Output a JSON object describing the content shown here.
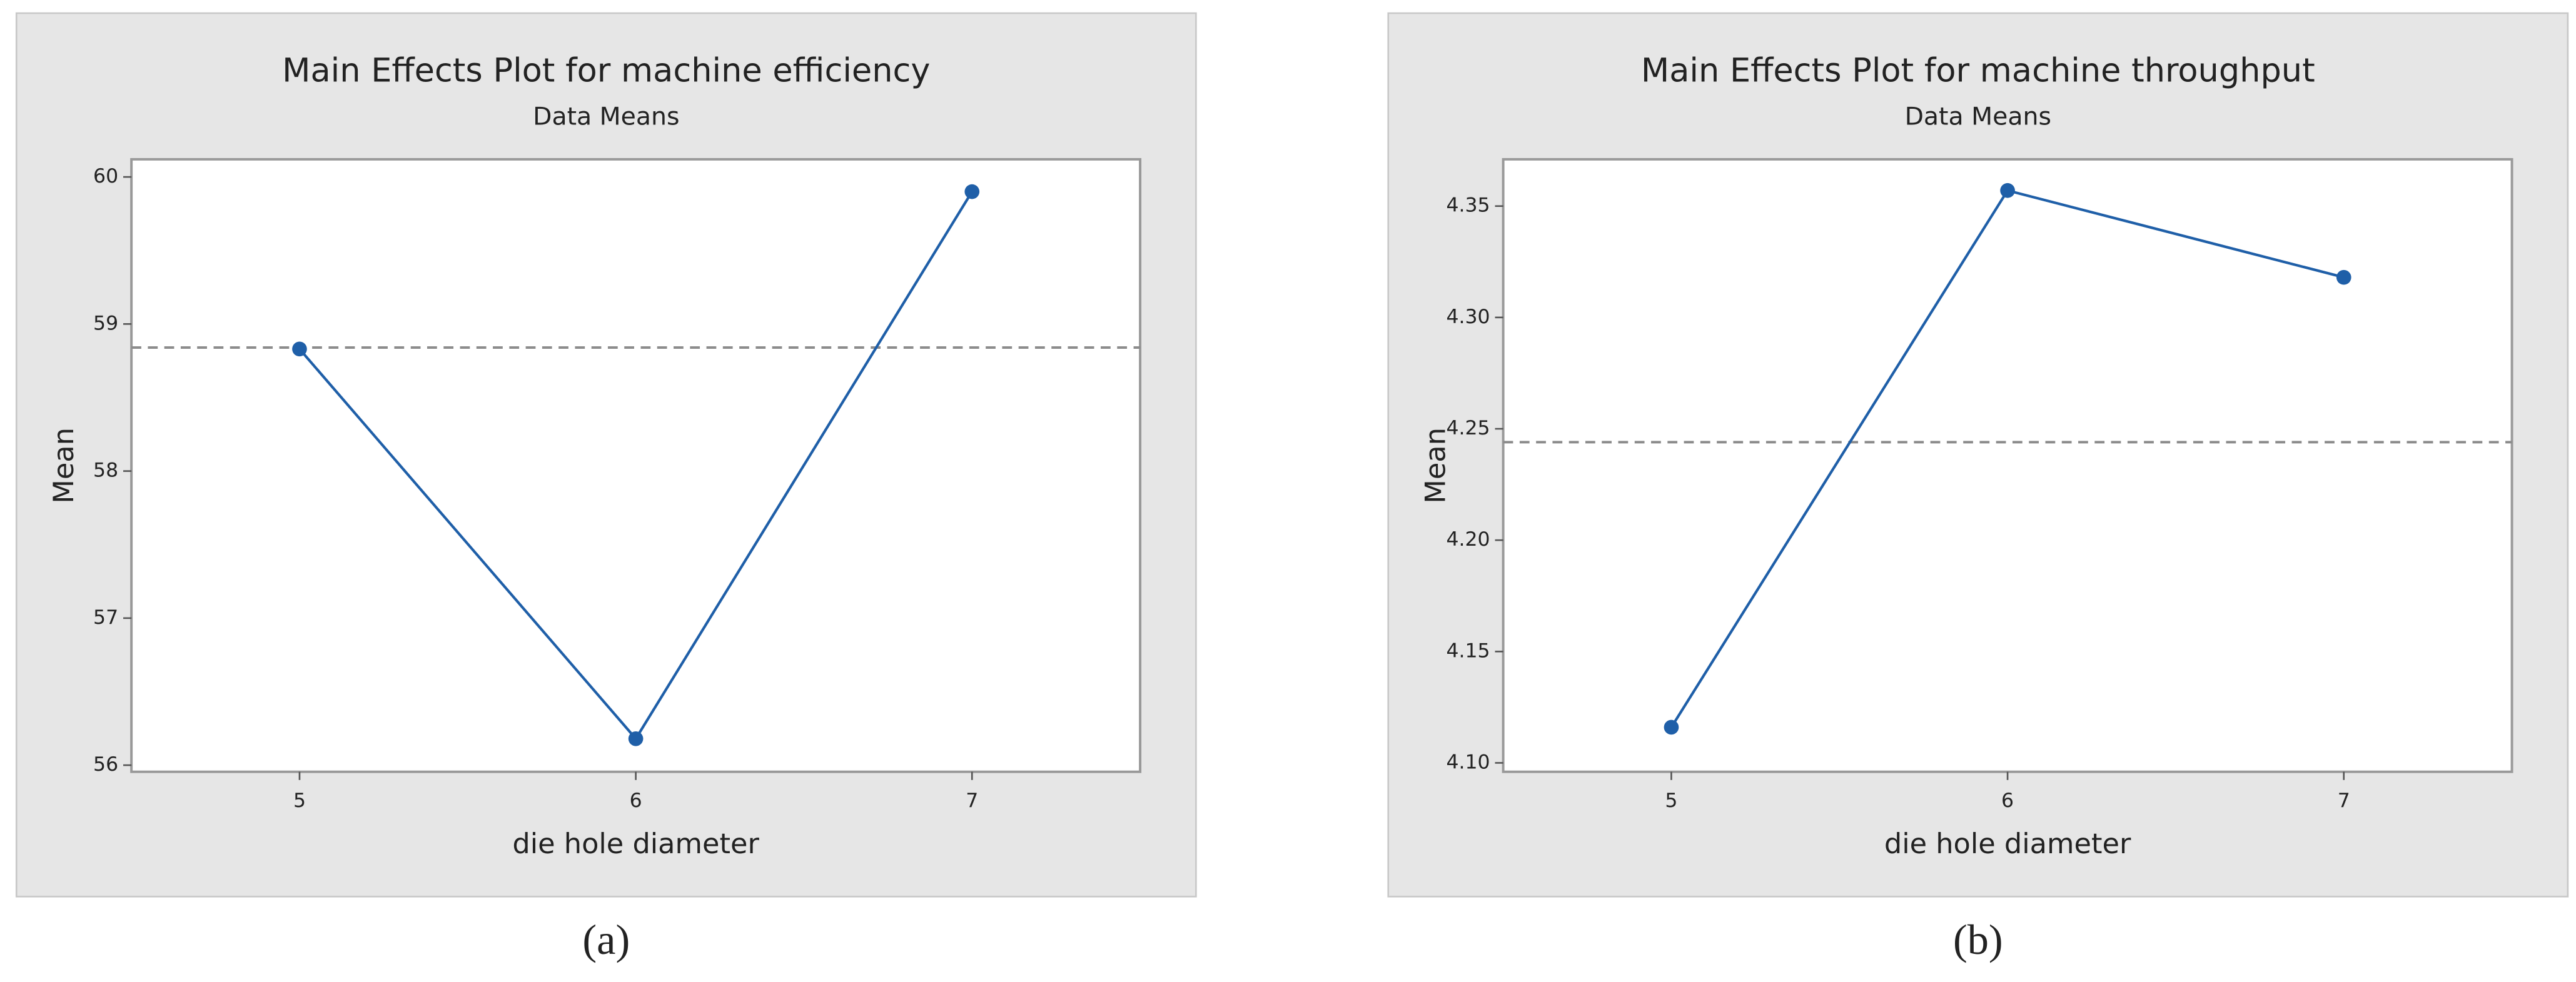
{
  "chart_data": [
    {
      "type": "line",
      "title": "Main Effects Plot for machine efficiency",
      "subtitle": "Data Means",
      "xlabel": "die hole diameter",
      "ylabel": "Mean",
      "panel_label": "(a)",
      "x": [
        5,
        6,
        7
      ],
      "xlim": [
        4.5,
        7.5
      ],
      "xticks": [
        5,
        6,
        7
      ],
      "ylim": [
        55.955,
        60.12
      ],
      "yticks": [
        56,
        57,
        58,
        59,
        60
      ],
      "series": [
        {
          "color": "#1f5fa8",
          "values": [
            58.83,
            56.18,
            59.9
          ]
        }
      ],
      "reference_line": 58.84,
      "reference_color": "#8c8c8c"
    },
    {
      "type": "line",
      "title": "Main Effects Plot for machine throughput",
      "subtitle": "Data Means",
      "xlabel": "die hole diameter",
      "ylabel": "Mean",
      "panel_label": "(b)",
      "x": [
        5,
        6,
        7
      ],
      "xlim": [
        4.5,
        7.5
      ],
      "xticks": [
        5,
        6,
        7
      ],
      "ylim": [
        4.096,
        4.371
      ],
      "yticks": [
        {
          "value": 4.1,
          "label": "4.10"
        },
        4.15,
        {
          "value": 4.2,
          "label": "4.20"
        },
        4.25,
        {
          "value": 4.3,
          "label": "4.30"
        },
        4.35
      ],
      "series": [
        {
          "color": "#1f5fa8",
          "values": [
            4.116,
            4.357,
            4.318
          ]
        }
      ],
      "reference_line": 4.244,
      "reference_color": "#8c8c8c"
    }
  ]
}
